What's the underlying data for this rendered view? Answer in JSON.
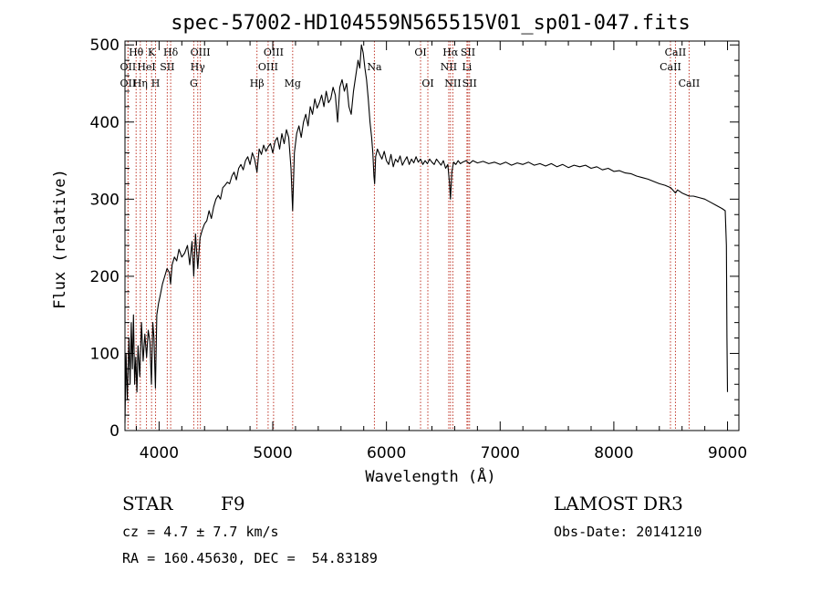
{
  "info": {
    "object_class": "STAR",
    "subclass": "F9",
    "survey": "LAMOST DR3",
    "cz": "cz = 4.7 ± 7.7 km/s",
    "obs_date": "Obs-Date: 20141210",
    "coords": "RA = 160.45630, DEC =  54.83189"
  },
  "chart_data": {
    "type": "line",
    "title": "spec-57002-HD104559N565515V01_sp01-047.fits",
    "xlabel": "Wavelength (Å)",
    "ylabel": "Flux (relative)",
    "xlim": [
      3700,
      9100
    ],
    "ylim": [
      0,
      505
    ],
    "xticks": [
      4000,
      5000,
      6000,
      7000,
      8000,
      9000
    ],
    "yticks": [
      0,
      100,
      200,
      300,
      400,
      500
    ],
    "minor_xtick_step": 200,
    "minor_ytick_step": 20,
    "series": [
      {
        "color": "#000000",
        "points": [
          [
            3700,
            10
          ],
          [
            3710,
            100
          ],
          [
            3720,
            40
          ],
          [
            3735,
            120
          ],
          [
            3745,
            60
          ],
          [
            3755,
            140
          ],
          [
            3765,
            80
          ],
          [
            3775,
            150
          ],
          [
            3785,
            60
          ],
          [
            3795,
            95
          ],
          [
            3805,
            50
          ],
          [
            3815,
            110
          ],
          [
            3830,
            70
          ],
          [
            3845,
            140
          ],
          [
            3860,
            90
          ],
          [
            3875,
            125
          ],
          [
            3890,
            95
          ],
          [
            3905,
            130
          ],
          [
            3920,
            115
          ],
          [
            3933,
            60
          ],
          [
            3945,
            140
          ],
          [
            3955,
            120
          ],
          [
            3968,
            55
          ],
          [
            3980,
            150
          ],
          [
            3995,
            165
          ],
          [
            4010,
            175
          ],
          [
            4030,
            190
          ],
          [
            4050,
            200
          ],
          [
            4070,
            210
          ],
          [
            4090,
            205
          ],
          [
            4101,
            190
          ],
          [
            4115,
            215
          ],
          [
            4135,
            225
          ],
          [
            4155,
            220
          ],
          [
            4175,
            235
          ],
          [
            4200,
            225
          ],
          [
            4225,
            230
          ],
          [
            4250,
            240
          ],
          [
            4270,
            215
          ],
          [
            4290,
            245
          ],
          [
            4305,
            200
          ],
          [
            4320,
            255
          ],
          [
            4340,
            210
          ],
          [
            4360,
            250
          ],
          [
            4380,
            260
          ],
          [
            4400,
            268
          ],
          [
            4420,
            272
          ],
          [
            4440,
            285
          ],
          [
            4460,
            275
          ],
          [
            4480,
            290
          ],
          [
            4500,
            300
          ],
          [
            4520,
            305
          ],
          [
            4540,
            300
          ],
          [
            4560,
            315
          ],
          [
            4580,
            318
          ],
          [
            4600,
            322
          ],
          [
            4620,
            320
          ],
          [
            4640,
            330
          ],
          [
            4660,
            335
          ],
          [
            4680,
            325
          ],
          [
            4700,
            340
          ],
          [
            4720,
            345
          ],
          [
            4740,
            338
          ],
          [
            4760,
            350
          ],
          [
            4780,
            355
          ],
          [
            4800,
            345
          ],
          [
            4820,
            360
          ],
          [
            4840,
            352
          ],
          [
            4861,
            335
          ],
          [
            4880,
            365
          ],
          [
            4900,
            358
          ],
          [
            4920,
            370
          ],
          [
            4940,
            362
          ],
          [
            4960,
            368
          ],
          [
            4980,
            372
          ],
          [
            5000,
            360
          ],
          [
            5020,
            375
          ],
          [
            5040,
            380
          ],
          [
            5060,
            365
          ],
          [
            5080,
            385
          ],
          [
            5100,
            372
          ],
          [
            5120,
            390
          ],
          [
            5140,
            380
          ],
          [
            5160,
            340
          ],
          [
            5175,
            285
          ],
          [
            5190,
            360
          ],
          [
            5210,
            385
          ],
          [
            5230,
            395
          ],
          [
            5250,
            380
          ],
          [
            5270,
            400
          ],
          [
            5290,
            410
          ],
          [
            5310,
            395
          ],
          [
            5330,
            420
          ],
          [
            5350,
            410
          ],
          [
            5370,
            430
          ],
          [
            5390,
            418
          ],
          [
            5410,
            425
          ],
          [
            5430,
            435
          ],
          [
            5450,
            420
          ],
          [
            5470,
            440
          ],
          [
            5490,
            425
          ],
          [
            5510,
            430
          ],
          [
            5530,
            445
          ],
          [
            5550,
            435
          ],
          [
            5570,
            400
          ],
          [
            5590,
            445
          ],
          [
            5610,
            455
          ],
          [
            5630,
            440
          ],
          [
            5650,
            450
          ],
          [
            5670,
            420
          ],
          [
            5690,
            410
          ],
          [
            5710,
            440
          ],
          [
            5730,
            460
          ],
          [
            5750,
            480
          ],
          [
            5765,
            470
          ],
          [
            5780,
            500
          ],
          [
            5795,
            490
          ],
          [
            5810,
            470
          ],
          [
            5825,
            455
          ],
          [
            5840,
            430
          ],
          [
            5855,
            400
          ],
          [
            5870,
            380
          ],
          [
            5880,
            360
          ],
          [
            5890,
            330
          ],
          [
            5896,
            320
          ],
          [
            5905,
            355
          ],
          [
            5920,
            365
          ],
          [
            5940,
            358
          ],
          [
            5960,
            352
          ],
          [
            5980,
            362
          ],
          [
            6000,
            350
          ],
          [
            6020,
            345
          ],
          [
            6040,
            358
          ],
          [
            6060,
            342
          ],
          [
            6080,
            352
          ],
          [
            6100,
            348
          ],
          [
            6120,
            356
          ],
          [
            6140,
            344
          ],
          [
            6160,
            350
          ],
          [
            6180,
            355
          ],
          [
            6200,
            345
          ],
          [
            6220,
            352
          ],
          [
            6240,
            347
          ],
          [
            6260,
            355
          ],
          [
            6280,
            348
          ],
          [
            6300,
            352
          ],
          [
            6320,
            345
          ],
          [
            6340,
            350
          ],
          [
            6360,
            346
          ],
          [
            6380,
            352
          ],
          [
            6400,
            348
          ],
          [
            6420,
            345
          ],
          [
            6440,
            352
          ],
          [
            6460,
            348
          ],
          [
            6480,
            344
          ],
          [
            6500,
            350
          ],
          [
            6520,
            340
          ],
          [
            6540,
            345
          ],
          [
            6555,
            320
          ],
          [
            6563,
            300
          ],
          [
            6575,
            335
          ],
          [
            6590,
            348
          ],
          [
            6610,
            345
          ],
          [
            6630,
            350
          ],
          [
            6650,
            346
          ],
          [
            6670,
            348
          ],
          [
            6700,
            350
          ],
          [
            6730,
            346
          ],
          [
            6760,
            350
          ],
          [
            6800,
            347
          ],
          [
            6850,
            349
          ],
          [
            6900,
            346
          ],
          [
            6950,
            348
          ],
          [
            7000,
            345
          ],
          [
            7050,
            348
          ],
          [
            7100,
            344
          ],
          [
            7150,
            347
          ],
          [
            7200,
            345
          ],
          [
            7250,
            348
          ],
          [
            7300,
            344
          ],
          [
            7350,
            346
          ],
          [
            7400,
            343
          ],
          [
            7450,
            346
          ],
          [
            7500,
            342
          ],
          [
            7550,
            345
          ],
          [
            7600,
            341
          ],
          [
            7650,
            344
          ],
          [
            7700,
            342
          ],
          [
            7750,
            344
          ],
          [
            7800,
            340
          ],
          [
            7850,
            342
          ],
          [
            7900,
            338
          ],
          [
            7950,
            340
          ],
          [
            8000,
            336
          ],
          [
            8050,
            337
          ],
          [
            8100,
            334
          ],
          [
            8150,
            333
          ],
          [
            8200,
            330
          ],
          [
            8250,
            328
          ],
          [
            8300,
            326
          ],
          [
            8350,
            323
          ],
          [
            8400,
            320
          ],
          [
            8450,
            318
          ],
          [
            8500,
            315
          ],
          [
            8542,
            308
          ],
          [
            8560,
            312
          ],
          [
            8600,
            308
          ],
          [
            8662,
            304
          ],
          [
            8700,
            304
          ],
          [
            8750,
            302
          ],
          [
            8800,
            300
          ],
          [
            8850,
            296
          ],
          [
            8900,
            292
          ],
          [
            8950,
            288
          ],
          [
            8980,
            285
          ],
          [
            8990,
            240
          ],
          [
            8995,
            120
          ],
          [
            9000,
            50
          ]
        ]
      }
    ],
    "annotations": [
      {
        "label": "Hθ",
        "x": 3798,
        "row": 0
      },
      {
        "label": "OII",
        "x": 3727,
        "row": 1
      },
      {
        "label": "OII",
        "x": 3727,
        "row": 2
      },
      {
        "label": "Hη",
        "x": 3835,
        "row": 2
      },
      {
        "label": "HeI",
        "x": 3889,
        "row": 1
      },
      {
        "label": "K",
        "x": 3934,
        "row": 0
      },
      {
        "label": "H",
        "x": 3969,
        "row": 2
      },
      {
        "label": "SII",
        "x": 4072,
        "row": 1
      },
      {
        "label": "Hδ",
        "x": 4102,
        "row": 0
      },
      {
        "label": "OIII",
        "x": 4363,
        "row": 0
      },
      {
        "label": "Hγ",
        "x": 4340,
        "row": 1
      },
      {
        "label": "G",
        "x": 4305,
        "row": 2
      },
      {
        "label": "Hβ",
        "x": 4861,
        "row": 2
      },
      {
        "label": "OIII",
        "x": 5007,
        "row": 0
      },
      {
        "label": "OIII",
        "x": 4959,
        "row": 1
      },
      {
        "label": "Mg",
        "x": 5175,
        "row": 2
      },
      {
        "label": "Na",
        "x": 5894,
        "row": 1
      },
      {
        "label": "OI",
        "x": 6300,
        "row": 0
      },
      {
        "label": "OI",
        "x": 6364,
        "row": 2
      },
      {
        "label": "Hα",
        "x": 6563,
        "row": 0
      },
      {
        "label": "SII",
        "x": 6717,
        "row": 0
      },
      {
        "label": "NII",
        "x": 6548,
        "row": 1
      },
      {
        "label": "Li",
        "x": 6708,
        "row": 1
      },
      {
        "label": "NII",
        "x": 6584,
        "row": 2
      },
      {
        "label": "SII",
        "x": 6731,
        "row": 2
      },
      {
        "label": "CaII",
        "x": 8542,
        "row": 0
      },
      {
        "label": "CaII",
        "x": 8498,
        "row": 1
      },
      {
        "label": "CaII",
        "x": 8662,
        "row": 2
      }
    ],
    "grid": false,
    "legend": "none"
  }
}
